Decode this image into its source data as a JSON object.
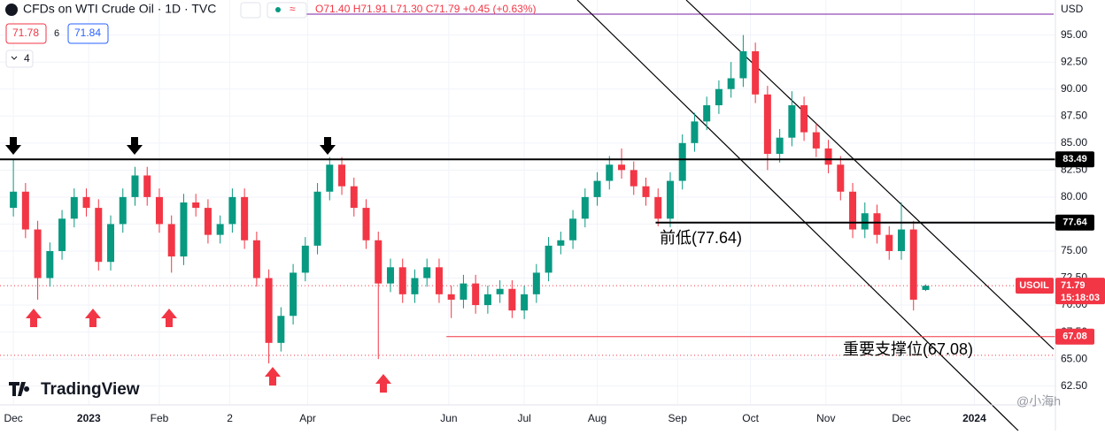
{
  "header": {
    "symbol": "CFDs on WTI Crude Oil · 1D · TVC",
    "ohlc": "O71.40 H71.91 L71.30 C71.79 +0.45 (+0.63%)",
    "bid": "71.78",
    "spread": "6",
    "ask": "71.84",
    "indicators": "4",
    "currency": "USD"
  },
  "brand": "TradingView",
  "watermark": "@小海h",
  "chart_data": {
    "type": "candlestick",
    "up_color": "#089981",
    "down_color": "#f23645",
    "x": [
      0,
      5,
      10,
      15,
      20,
      25,
      30,
      35,
      40,
      45,
      50,
      55,
      60,
      65,
      70,
      75,
      80,
      85,
      90,
      95,
      100,
      105,
      110,
      115,
      120,
      125,
      130,
      135,
      140,
      145,
      150,
      155,
      160,
      165,
      170,
      175,
      180,
      185,
      190,
      195,
      200,
      205,
      210,
      215,
      220,
      225,
      230,
      235,
      240,
      245,
      250,
      255,
      260,
      265,
      270,
      275,
      280,
      285,
      290,
      295,
      300,
      305,
      310,
      315,
      320,
      325,
      330,
      335,
      340,
      345,
      350,
      355,
      360,
      365,
      370,
      375
    ],
    "open": [
      79,
      80.5,
      77,
      72.5,
      75,
      78,
      80,
      79,
      74,
      77.5,
      80,
      82,
      80,
      77.5,
      74.5,
      79.5,
      79,
      76.5,
      77.5,
      80,
      76,
      72.5,
      66.5,
      69,
      73,
      75.5,
      80.5,
      83,
      81,
      79,
      76,
      72,
      73.5,
      71,
      72.5,
      73.5,
      71,
      70.5,
      72,
      70,
      71,
      71.5,
      69.5,
      71,
      73,
      75.5,
      76,
      78,
      80,
      81.5,
      83,
      82.5,
      81,
      80,
      78,
      81.5,
      85,
      87,
      88.5,
      90,
      91,
      93.5,
      89.5,
      84,
      85.5,
      88.5,
      86,
      84.5,
      83,
      80.5,
      77,
      78.5,
      76.5,
      75,
      77,
      71.4
    ],
    "high": [
      83.5,
      81.3,
      77.8,
      75.8,
      78.8,
      80.8,
      80.8,
      79.8,
      78.3,
      80.8,
      82.8,
      82.8,
      80.8,
      78.3,
      80.3,
      80.3,
      79.8,
      78.3,
      80.8,
      80.8,
      76.8,
      73.3,
      69.8,
      73.8,
      76.3,
      81.3,
      83.7,
      83.7,
      81.8,
      79.8,
      76.8,
      74.3,
      74.3,
      73.3,
      74.3,
      74.3,
      71.8,
      72.8,
      72.8,
      71.8,
      72.3,
      72.3,
      71.8,
      73.8,
      76.3,
      76.8,
      78.8,
      80.8,
      82.3,
      83.8,
      84.5,
      83.3,
      81.8,
      80.8,
      82.3,
      85.8,
      87.8,
      89.3,
      90.8,
      92.5,
      95,
      94.3,
      90.3,
      86.3,
      89.8,
      89.3,
      86.8,
      85.3,
      83.8,
      81.3,
      79.5,
      79.3,
      77.3,
      79.5,
      77.8,
      71.91
    ],
    "low": [
      78.2,
      76.2,
      70.5,
      71.7,
      74.2,
      77.2,
      78.2,
      73.2,
      73.2,
      76.7,
      79.2,
      79.2,
      76.7,
      73,
      73.7,
      78.2,
      75.7,
      75.7,
      76.7,
      75.2,
      71.7,
      64.6,
      65.7,
      68.2,
      72.2,
      74.7,
      79.7,
      80.2,
      78.2,
      75.2,
      65,
      71.2,
      70.2,
      70.2,
      71.7,
      70.2,
      68.8,
      69.7,
      69.2,
      69.2,
      70.2,
      68.8,
      68.7,
      70.2,
      72.2,
      74.7,
      75.2,
      77.2,
      79.2,
      80.7,
      81.7,
      80.2,
      79.2,
      77.3,
      77.2,
      80.7,
      84.2,
      86.2,
      87.7,
      89.2,
      90.2,
      88.7,
      82.5,
      83.2,
      84.7,
      85.2,
      83.7,
      82.2,
      79.7,
      76.2,
      76.2,
      75.7,
      74.2,
      74.2,
      69.5,
      71.3
    ],
    "close": [
      80.5,
      77,
      72.5,
      75,
      78,
      80,
      79,
      74,
      77.5,
      80,
      82,
      80,
      77.5,
      74.5,
      79.5,
      79,
      76.5,
      77.5,
      80,
      76,
      72.5,
      66.5,
      69,
      73,
      75.5,
      80.5,
      83,
      81,
      79,
      76,
      72,
      73.5,
      71,
      72.5,
      73.5,
      71,
      70.5,
      72,
      70,
      71,
      71.5,
      69.5,
      71,
      73,
      75.5,
      76,
      78,
      80,
      81.5,
      83,
      82.5,
      81,
      80,
      78,
      81.5,
      85,
      87,
      88.5,
      90,
      91,
      93.5,
      89.5,
      84,
      85.5,
      88.5,
      86,
      84.5,
      83,
      80.5,
      77,
      78.5,
      76.5,
      75,
      77,
      70.5,
      71.79
    ],
    "xlim": [
      -5.5,
      427.6
    ],
    "xticks": [
      {
        "value": 0,
        "label": "Dec"
      },
      {
        "value": 31,
        "label": "2023"
      },
      {
        "value": 60,
        "label": "Feb"
      },
      {
        "value": 89,
        "label": "2"
      },
      {
        "value": 121,
        "label": "Apr"
      },
      {
        "value": 179,
        "label": "Jun"
      },
      {
        "value": 210,
        "label": "Jul"
      },
      {
        "value": 240,
        "label": "Aug"
      },
      {
        "value": 273,
        "label": "Sep"
      },
      {
        "value": 303,
        "label": "Oct"
      },
      {
        "value": 334,
        "label": "Nov"
      },
      {
        "value": 365,
        "label": "Dec"
      },
      {
        "value": 395,
        "label": "2024"
      }
    ],
    "ylim": [
      61,
      98
    ],
    "yticks": [
      {
        "value": 62.5,
        "label": "62.50"
      },
      {
        "value": 65,
        "label": "65.00"
      },
      {
        "value": 67.5,
        "label": "67.50"
      },
      {
        "value": 70,
        "label": "70.00"
      },
      {
        "value": 72.5,
        "label": "72.50"
      },
      {
        "value": 75,
        "label": "75.00"
      },
      {
        "value": 77.5,
        "label": "77.50"
      },
      {
        "value": 80,
        "label": "80.00"
      },
      {
        "value": 82.5,
        "label": "82.50"
      },
      {
        "value": 85,
        "label": "85.00"
      },
      {
        "value": 87.5,
        "label": "87.50"
      },
      {
        "value": 90,
        "label": "90.00"
      },
      {
        "value": 92.5,
        "label": "92.50"
      },
      {
        "value": 95,
        "label": "95.00"
      }
    ],
    "hlines": [
      {
        "value": 83.49,
        "start": -5.5,
        "color": "#000000"
      },
      {
        "value": 77.64,
        "start": 264,
        "color": "#000000"
      },
      {
        "value": 67.08,
        "start": 178,
        "color": "#f23645"
      }
    ],
    "dotted_levels": [
      65.35
    ],
    "last": 71.79,
    "last_label": "USOIL",
    "countdown": "15:18:03",
    "annotations": [
      "前低(77.64)",
      "重要支撑位(67.08)"
    ]
  }
}
